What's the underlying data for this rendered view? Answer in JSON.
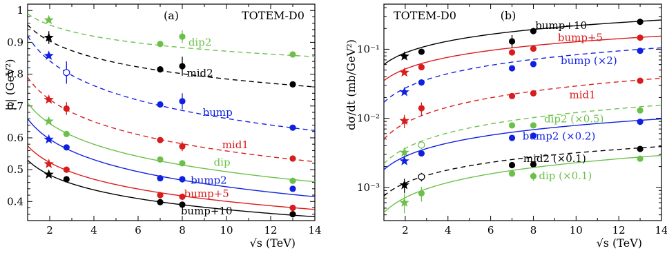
{
  "chart_data": [
    {
      "type": "scatter",
      "panel_label": "(a)",
      "tag": "TOTEM-D0",
      "xlabel": "√s   (TeV)",
      "ylabel": "|t|   (GeV²)",
      "xlim": [
        1,
        14
      ],
      "ylim": [
        0.34,
        1.02
      ],
      "xticks": [
        2,
        4,
        6,
        8,
        10,
        12,
        14
      ],
      "yticks": [
        0.4,
        0.5,
        0.6,
        0.7,
        0.8,
        0.9,
        1
      ],
      "ytick_labels": [
        "0.4",
        "0.5",
        "0.6",
        "0.7",
        "0.8",
        "0.9",
        "1"
      ],
      "yscale": "linear",
      "grid": false,
      "series": [
        {
          "name": "dip2",
          "color": "#6cc04a",
          "dashed": true,
          "label_x": 8.8,
          "label_y": 0.9,
          "fit": {
            "at_1": 0.99,
            "at_14": 0.855
          },
          "star": {
            "x": 1.96,
            "y": 0.97
          },
          "points": [
            {
              "x": 7,
              "y": 0.895
            },
            {
              "x": 8,
              "y": 0.918,
              "err": 0.02
            },
            {
              "x": 13,
              "y": 0.862
            }
          ]
        },
        {
          "name": "mid2",
          "color": "#000000",
          "dashed": true,
          "label_x": 8.8,
          "label_y": 0.803,
          "fit": {
            "at_1": 0.955,
            "at_14": 0.76
          },
          "star": {
            "x": 1.96,
            "y": 0.915,
            "err": 0.02
          },
          "points": [
            {
              "x": 7,
              "y": 0.815
            },
            {
              "x": 8,
              "y": 0.825,
              "err": 0.03
            },
            {
              "x": 13,
              "y": 0.768
            }
          ]
        },
        {
          "name": "bump",
          "color": "#1020e0",
          "dashed": true,
          "label_x": 9.6,
          "label_y": 0.68,
          "fit": {
            "at_1": 0.92,
            "at_14": 0.623
          },
          "star": {
            "x": 1.96,
            "y": 0.858
          },
          "points": [
            {
              "x": 2.76,
              "y": 0.805,
              "err": 0.035,
              "open": true
            },
            {
              "x": 7,
              "y": 0.705
            },
            {
              "x": 8,
              "y": 0.715,
              "err": 0.025
            },
            {
              "x": 13,
              "y": 0.632
            }
          ]
        },
        {
          "name": "mid1",
          "color": "#d91c1c",
          "dashed": true,
          "label_x": 10.4,
          "label_y": 0.578,
          "fit": {
            "at_1": 0.79,
            "at_14": 0.525
          },
          "star": {
            "x": 1.96,
            "y": 0.72
          },
          "points": [
            {
              "x": 2.76,
              "y": 0.692,
              "err": 0.02
            },
            {
              "x": 7,
              "y": 0.593
            },
            {
              "x": 8,
              "y": 0.573,
              "err": 0.015
            },
            {
              "x": 13,
              "y": 0.535
            }
          ]
        },
        {
          "name": "dip",
          "color": "#6cc04a",
          "dashed": false,
          "label_x": 9.8,
          "label_y": 0.523,
          "fit": {
            "at_1": 0.71,
            "at_14": 0.462
          },
          "star": {
            "x": 1.96,
            "y": 0.652
          },
          "points": [
            {
              "x": 2.76,
              "y": 0.612
            },
            {
              "x": 7,
              "y": 0.532
            },
            {
              "x": 8,
              "y": 0.52
            },
            {
              "x": 13,
              "y": 0.465
            }
          ]
        },
        {
          "name": "bump2",
          "color": "#1020e0",
          "dashed": false,
          "label_x": 9.2,
          "label_y": 0.467,
          "fit": {
            "at_1": 0.66,
            "at_14": 0.415
          },
          "star": {
            "x": 1.96,
            "y": 0.595
          },
          "points": [
            {
              "x": 2.76,
              "y": 0.57
            },
            {
              "x": 7,
              "y": 0.473
            },
            {
              "x": 8,
              "y": 0.47
            },
            {
              "x": 13,
              "y": 0.44
            }
          ]
        },
        {
          "name": "bump+5",
          "color": "#d91c1c",
          "dashed": false,
          "label_x": 9.1,
          "label_y": 0.425,
          "fit": {
            "at_1": 0.575,
            "at_14": 0.375
          },
          "star": {
            "x": 1.96,
            "y": 0.518
          },
          "points": [
            {
              "x": 2.76,
              "y": 0.5
            },
            {
              "x": 7,
              "y": 0.42
            },
            {
              "x": 8,
              "y": 0.415
            },
            {
              "x": 13,
              "y": 0.38
            }
          ]
        },
        {
          "name": "bump+10",
          "color": "#000000",
          "dashed": false,
          "label_x": 9.1,
          "label_y": 0.37,
          "fit": {
            "at_1": 0.53,
            "at_14": 0.352
          },
          "star": {
            "x": 1.96,
            "y": 0.485
          },
          "points": [
            {
              "x": 2.76,
              "y": 0.47
            },
            {
              "x": 7,
              "y": 0.398
            },
            {
              "x": 8,
              "y": 0.39
            },
            {
              "x": 13,
              "y": 0.36
            }
          ]
        }
      ]
    },
    {
      "type": "scatter",
      "panel_label": "(b)",
      "tag": "TOTEM-D0",
      "xlabel": "√s   (TeV)",
      "ylabel": "dσ/dt   (mb/GeV²)",
      "xlim": [
        1,
        14
      ],
      "ylim": [
        0.00033,
        0.45
      ],
      "xticks": [
        2,
        4,
        6,
        8,
        10,
        12,
        14
      ],
      "yticks": [
        0.001,
        0.01,
        0.1
      ],
      "ytick_labels": [
        "10⁻³",
        "10⁻²",
        "10⁻¹"
      ],
      "yscale": "log",
      "grid": false,
      "series": [
        {
          "name": "bump+10",
          "color": "#000000",
          "dashed": false,
          "label_x": 9.3,
          "label_y": 0.22,
          "fit": {
            "at_1": 0.06,
            "at_14": 0.265
          },
          "star": {
            "x": 1.96,
            "y": 0.079
          },
          "points": [
            {
              "x": 2.76,
              "y": 0.092
            },
            {
              "x": 7,
              "y": 0.13,
              "err_lo": 0.105,
              "err_hi": 0.16
            },
            {
              "x": 8,
              "y": 0.183
            },
            {
              "x": 13,
              "y": 0.25
            }
          ]
        },
        {
          "name": "bump+5",
          "color": "#d91c1c",
          "dashed": false,
          "label_x": 10.2,
          "label_y": 0.148,
          "fit": {
            "at_1": 0.035,
            "at_14": 0.155
          },
          "star": {
            "x": 1.96,
            "y": 0.046
          },
          "points": [
            {
              "x": 2.76,
              "y": 0.055
            },
            {
              "x": 7,
              "y": 0.09
            },
            {
              "x": 8,
              "y": 0.102
            },
            {
              "x": 13,
              "y": 0.147
            }
          ]
        },
        {
          "name": "bump (×2)",
          "color": "#1020e0",
          "dashed": true,
          "label_x": 10.6,
          "label_y": 0.068,
          "fit": {
            "at_1": 0.017,
            "at_14": 0.105
          },
          "star": {
            "x": 1.96,
            "y": 0.024
          },
          "points": [
            {
              "x": 2.76,
              "y": 0.033
            },
            {
              "x": 7,
              "y": 0.053
            },
            {
              "x": 8,
              "y": 0.061
            },
            {
              "x": 13,
              "y": 0.095
            }
          ]
        },
        {
          "name": "mid1",
          "color": "#d91c1c",
          "dashed": true,
          "label_x": 10.3,
          "label_y": 0.022,
          "fit": {
            "at_1": 0.005,
            "at_14": 0.038
          },
          "star": {
            "x": 1.96,
            "y": 0.0092,
            "err": 0.002
          },
          "points": [
            {
              "x": 2.76,
              "y": 0.014,
              "err": 0.003
            },
            {
              "x": 7,
              "y": 0.021
            },
            {
              "x": 8,
              "y": 0.023
            },
            {
              "x": 13,
              "y": 0.035
            }
          ]
        },
        {
          "name": "dip2 (×0.5)",
          "color": "#6cc04a",
          "dashed": true,
          "label_x": 9.9,
          "label_y": 0.0098,
          "fit": {
            "at_1": 0.0022,
            "at_14": 0.0155
          },
          "star": {
            "x": 1.96,
            "y": 0.0032,
            "err": 0.0005
          },
          "points": [
            {
              "x": 2.76,
              "y": 0.0041,
              "open": true,
              "err": 0.0005
            },
            {
              "x": 7,
              "y": 0.0079
            },
            {
              "x": 8,
              "y": 0.0079
            },
            {
              "x": 13,
              "y": 0.013
            }
          ]
        },
        {
          "name": "bump2 (×0.2)",
          "color": "#1020e0",
          "dashed": false,
          "label_x": 9.2,
          "label_y": 0.0055,
          "fit": {
            "at_1": 0.0018,
            "at_14": 0.0098
          },
          "star": {
            "x": 1.96,
            "y": 0.0024
          },
          "points": [
            {
              "x": 2.76,
              "y": 0.0031
            },
            {
              "x": 7,
              "y": 0.0052
            },
            {
              "x": 8,
              "y": 0.0056
            },
            {
              "x": 13,
              "y": 0.0089
            }
          ]
        },
        {
          "name": "mid2 (×0.1)",
          "color": "#000000",
          "dashed": true,
          "label_x": 9.0,
          "label_y": 0.0026,
          "fit": {
            "at_1": 0.00075,
            "at_14": 0.0039
          },
          "star": {
            "x": 1.96,
            "y": 0.00108,
            "err": 0.00025
          },
          "points": [
            {
              "x": 2.76,
              "y": 0.00142,
              "open": true,
              "err": 0.0002
            },
            {
              "x": 7,
              "y": 0.0021
            },
            {
              "x": 8,
              "y": 0.00215
            },
            {
              "x": 13,
              "y": 0.0036
            }
          ]
        },
        {
          "name": "dip (×0.1)",
          "color": "#6cc04a",
          "dashed": false,
          "label_x": 9.5,
          "label_y": 0.00147,
          "fit": {
            "at_1": 0.00043,
            "at_14": 0.0029
          },
          "star": {
            "x": 1.96,
            "y": 0.0006,
            "err_lo": 0.00042,
            "err_hi": 0.00082
          },
          "points": [
            {
              "x": 2.76,
              "y": 0.00082,
              "err": 0.0002
            },
            {
              "x": 7,
              "y": 0.00158
            },
            {
              "x": 8,
              "y": 0.00145,
              "err": 0.0002
            },
            {
              "x": 13,
              "y": 0.0026
            }
          ]
        }
      ]
    }
  ]
}
